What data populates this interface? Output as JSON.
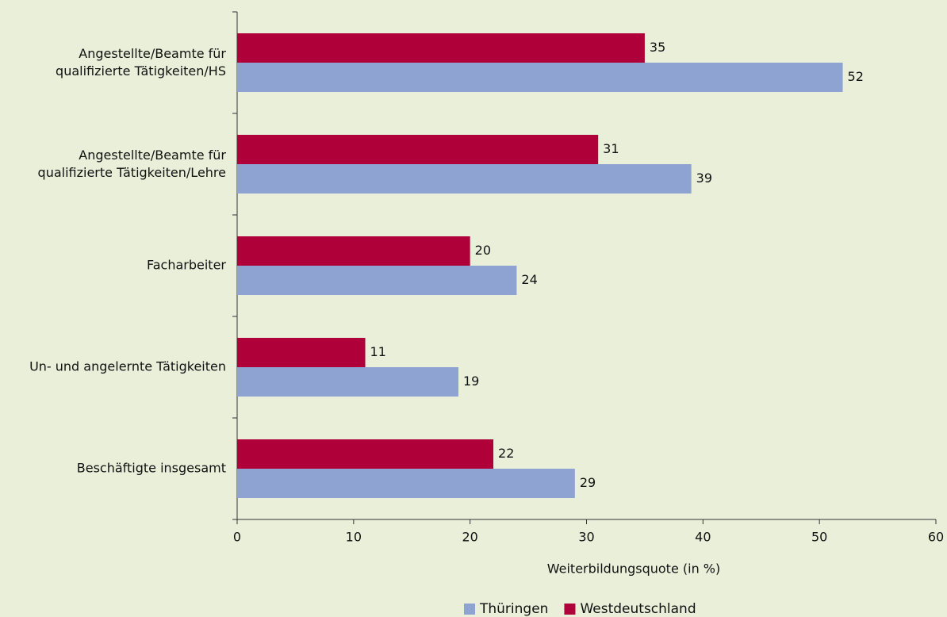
{
  "chart_data": {
    "type": "bar",
    "orientation": "horizontal",
    "categories": [
      "Angestellte/Beamte für\nqualifizierte Tätigkeiten/HS",
      "Angestellte/Beamte für\nqualifizierte Tätigkeiten/Lehre",
      "Facharbeiter",
      "Un- und angelernte Tätigkeiten",
      "Beschäftigte insgesamt"
    ],
    "series": [
      {
        "name": "Thüringen",
        "color": "#8fa3d3",
        "values": [
          52,
          39,
          24,
          19,
          29
        ]
      },
      {
        "name": "Westdeutschland",
        "color": "#b0003a",
        "values": [
          35,
          31,
          20,
          11,
          22
        ]
      }
    ],
    "xlabel": "Weiterbildungsquote (in %)",
    "xlim": [
      0,
      60
    ],
    "xticks": [
      0,
      10,
      20,
      30,
      40,
      50,
      60
    ],
    "legend": "bottom"
  }
}
